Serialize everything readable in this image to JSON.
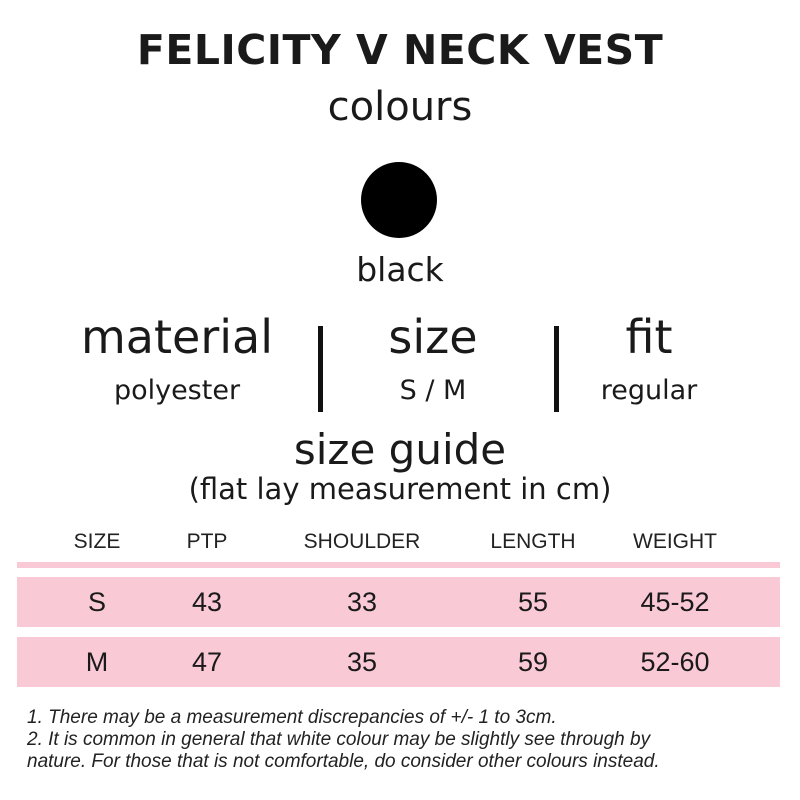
{
  "title": "FELICITY V NECK VEST",
  "subtitle": "colours",
  "colours": [
    {
      "name": "black",
      "hex": "#000000"
    }
  ],
  "specs": [
    {
      "heading": "material",
      "value": "polyester"
    },
    {
      "heading": "size",
      "value": "S / M"
    },
    {
      "heading": "fit",
      "value": "regular"
    }
  ],
  "size_guide": {
    "title": "size guide",
    "subtitle": "(flat lay measurement in cm)",
    "headers": [
      "SIZE",
      "PTP",
      "SHOULDER",
      "LENGTH",
      "WEIGHT"
    ],
    "rows": [
      [
        "S",
        "43",
        "33",
        "55",
        "45-52"
      ],
      [
        "M",
        "47",
        "35",
        "59",
        "52-60"
      ]
    ],
    "row_color": "#f9c9d6"
  },
  "notes": [
    "1.  There may be a measurement discrepancies of +/- 1 to 3cm.",
    "2. It is common in general that white colour may be slightly see through by",
    "nature. For those that is not comfortable, do consider other colours instead."
  ]
}
